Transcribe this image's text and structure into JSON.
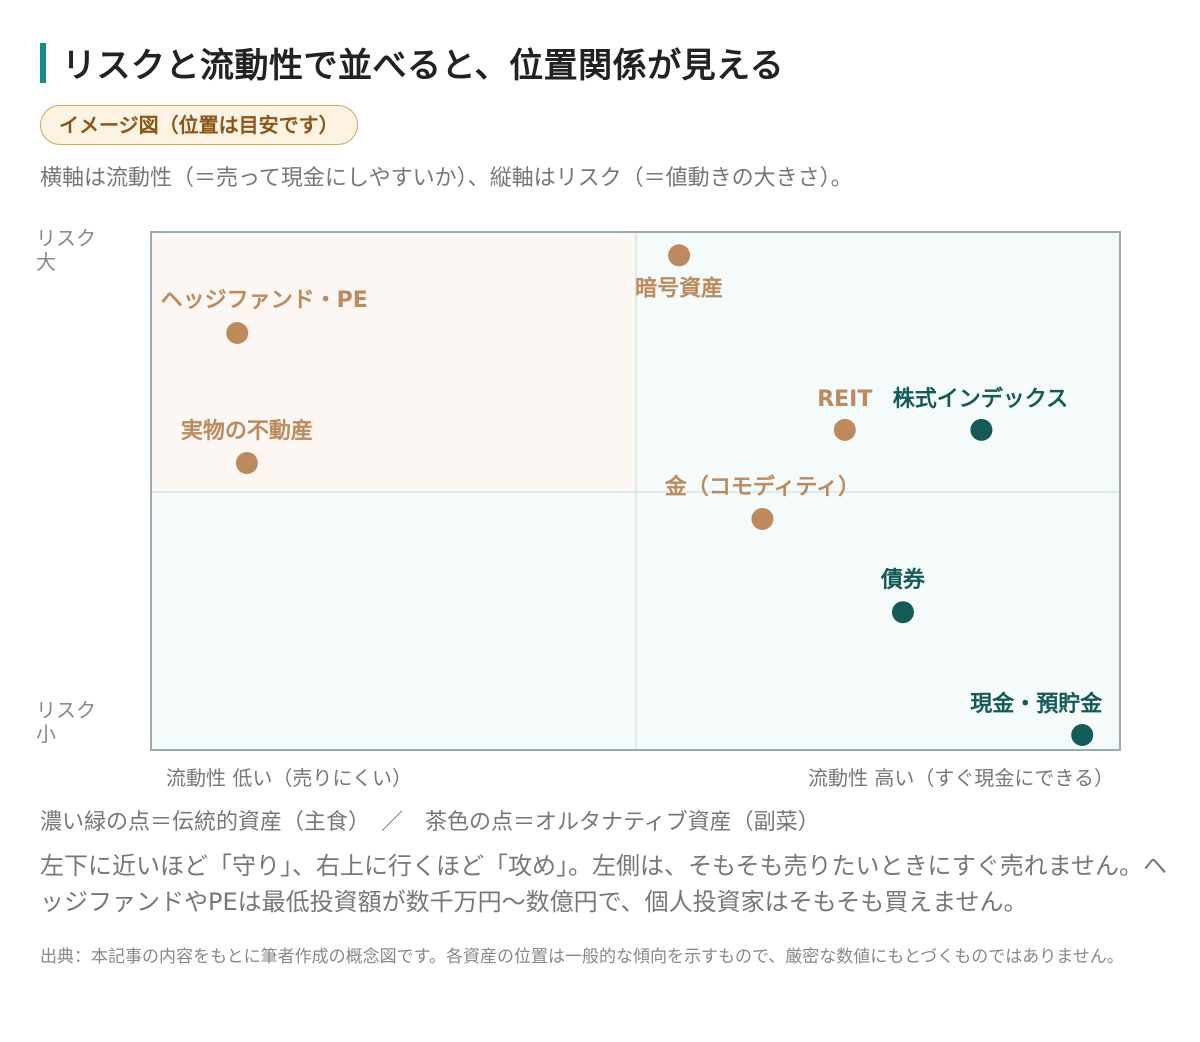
{
  "header": {
    "title": "リスクと流動性で並べると、位置関係が見える",
    "badge": "イメージ図（位置は目安です）",
    "subtitle": "横軸は流動性（＝売って現金にしやすいか）、縦軸はリスク（＝値動きの大きさ）。"
  },
  "colors": {
    "accent": "#1d8a86",
    "traditional": "#145a58",
    "alternative": "#bd8a5e",
    "quad_top_left": "#fcf7f2",
    "quad_other": "#f5fafa",
    "frame": "#9aabab"
  },
  "chart_data": {
    "type": "scatter",
    "xlabel_low": "流動性 低い（売りにくい）",
    "xlabel_high": "流動性 高い（すぐ現金にできる）",
    "ylabel_high": [
      "リスク",
      "大"
    ],
    "ylabel_low": [
      "リスク",
      "小"
    ],
    "xlim": [
      0,
      100
    ],
    "ylim": [
      0,
      100
    ],
    "points": [
      {
        "label": "暗号資産",
        "x": 54.5,
        "y": 95.5,
        "group": "alternative"
      },
      {
        "label": "ヘッジファンド・PE",
        "x": 8.9,
        "y": 80.5,
        "group": "alternative"
      },
      {
        "label": "REIT",
        "x": 71.6,
        "y": 61.8,
        "group": "alternative"
      },
      {
        "label": "株式インデックス",
        "x": 85.7,
        "y": 61.8,
        "group": "traditional"
      },
      {
        "label": "実物の不動産",
        "x": 9.9,
        "y": 55.4,
        "group": "alternative"
      },
      {
        "label": "金（コモディティ）",
        "x": 63.1,
        "y": 44.6,
        "group": "alternative"
      },
      {
        "label": "債券",
        "x": 77.6,
        "y": 26.6,
        "group": "traditional"
      },
      {
        "label": "現金・預貯金",
        "x": 96.1,
        "y": 2.9,
        "group": "traditional"
      }
    ]
  },
  "legend": "濃い緑の点＝伝統的資産（主食）　／　茶色の点＝オルタナティブ資産（副菜）",
  "body": "左下に近いほど「守り」、右上に行くほど「攻め」。左側は、そもそも売りたいときにすぐ売れません。ヘッジファンドやPEは最低投資額が数千万円〜数億円で、個人投資家はそもそも買えません。",
  "source": "出典：本記事の内容をもとに筆者作成の概念図です。各資産の位置は一般的な傾向を示すもので、厳密な数値にもとづくものではありません。"
}
